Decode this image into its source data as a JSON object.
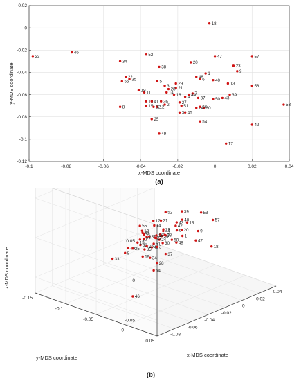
{
  "colors": {
    "point": "#d01414",
    "axis": "#333333",
    "grid": "#e2e2e2",
    "pane": "#ededed"
  },
  "chart_data": [
    {
      "type": "scatter",
      "subplot_label": "(a)",
      "xlabel": "x-MDS coordinate",
      "ylabel": "y-MDS coordinate",
      "xlim": [
        -0.1,
        0.04
      ],
      "ylim": [
        -0.12,
        0.02
      ],
      "xticks": [
        "-0.1",
        "-0.08",
        "-0.06",
        "-0.04",
        "-0.02",
        "0",
        "0.02",
        "0.04"
      ],
      "yticks": [
        "0.02",
        "0",
        "-0.02",
        "-0.04",
        "-0.06",
        "-0.08",
        "-0.1",
        "-0.12"
      ],
      "grid": true,
      "points": [
        {
          "label": "1",
          "x": -0.005,
          "y": -0.041
        },
        {
          "label": "2",
          "x": -0.027,
          "y": -0.069
        },
        {
          "label": "3",
          "x": -0.027,
          "y": -0.052
        },
        {
          "label": "4",
          "x": -0.016,
          "y": -0.062
        },
        {
          "label": "5",
          "x": -0.031,
          "y": -0.048
        },
        {
          "label": "6",
          "x": -0.008,
          "y": -0.046
        },
        {
          "label": "7",
          "x": -0.012,
          "y": -0.059
        },
        {
          "label": "8",
          "x": -0.051,
          "y": -0.071
        },
        {
          "label": "9",
          "x": 0.012,
          "y": -0.039
        },
        {
          "label": "10",
          "x": -0.037,
          "y": -0.066
        },
        {
          "label": "11",
          "x": -0.038,
          "y": -0.058
        },
        {
          "label": "12",
          "x": -0.031,
          "y": -0.071
        },
        {
          "label": "13",
          "x": 0.007,
          "y": -0.05
        },
        {
          "label": "14",
          "x": -0.026,
          "y": -0.058
        },
        {
          "label": "15",
          "x": -0.037,
          "y": -0.07
        },
        {
          "label": "16",
          "x": -0.022,
          "y": -0.06
        },
        {
          "label": "17",
          "x": 0.006,
          "y": -0.104
        },
        {
          "label": "18",
          "x": -0.003,
          "y": 0.004
        },
        {
          "label": "19",
          "x": -0.041,
          "y": -0.056
        },
        {
          "label": "20",
          "x": -0.013,
          "y": -0.031
        },
        {
          "label": "21",
          "x": -0.021,
          "y": -0.054
        },
        {
          "label": "22",
          "x": -0.048,
          "y": -0.044
        },
        {
          "label": "23",
          "x": 0.01,
          "y": -0.034
        },
        {
          "label": "24",
          "x": -0.01,
          "y": -0.072
        },
        {
          "label": "25",
          "x": -0.034,
          "y": -0.082
        },
        {
          "label": "26",
          "x": -0.029,
          "y": -0.066
        },
        {
          "label": "27",
          "x": -0.019,
          "y": -0.067
        },
        {
          "label": "28",
          "x": -0.025,
          "y": -0.055
        },
        {
          "label": "29",
          "x": -0.021,
          "y": -0.05
        },
        {
          "label": "30",
          "x": -0.006,
          "y": -0.072
        },
        {
          "label": "31",
          "x": -0.019,
          "y": -0.076
        },
        {
          "label": "32",
          "x": -0.033,
          "y": -0.071
        },
        {
          "label": "33",
          "x": -0.098,
          "y": -0.026
        },
        {
          "label": "34",
          "x": -0.051,
          "y": -0.03
        },
        {
          "label": "35",
          "x": -0.046,
          "y": -0.046
        },
        {
          "label": "36",
          "x": -0.008,
          "y": -0.071
        },
        {
          "label": "37",
          "x": -0.009,
          "y": -0.063
        },
        {
          "label": "38",
          "x": -0.03,
          "y": -0.035
        },
        {
          "label": "39",
          "x": 0.008,
          "y": -0.06
        },
        {
          "label": "40",
          "x": -0.001,
          "y": -0.047
        },
        {
          "label": "41",
          "x": -0.034,
          "y": -0.066
        },
        {
          "label": "42",
          "x": 0.02,
          "y": -0.087
        },
        {
          "label": "43",
          "x": 0.004,
          "y": -0.063
        },
        {
          "label": "44",
          "x": -0.014,
          "y": -0.06
        },
        {
          "label": "45",
          "x": -0.016,
          "y": -0.076
        },
        {
          "label": "46",
          "x": -0.077,
          "y": -0.022
        },
        {
          "label": "47",
          "x": 0.0,
          "y": -0.026
        },
        {
          "label": "48",
          "x": -0.01,
          "y": -0.044
        },
        {
          "label": "49",
          "x": -0.03,
          "y": -0.095
        },
        {
          "label": "50",
          "x": -0.001,
          "y": -0.064
        },
        {
          "label": "51",
          "x": -0.018,
          "y": -0.07
        },
        {
          "label": "52",
          "x": -0.037,
          "y": -0.024
        },
        {
          "label": "53",
          "x": 0.037,
          "y": -0.069
        },
        {
          "label": "54",
          "x": -0.008,
          "y": -0.084
        },
        {
          "label": "55",
          "x": -0.05,
          "y": -0.048
        },
        {
          "label": "56",
          "x": 0.02,
          "y": -0.052
        },
        {
          "label": "57",
          "x": 0.02,
          "y": -0.026
        }
      ]
    },
    {
      "type": "scatter",
      "subplot_label": "(b)",
      "xlabel": "x-MDS coordinate",
      "ylabel": "y-MDS coordinate",
      "zlabel": "z-MDS coordinate",
      "xticks": [
        "-0.08",
        "-0.06",
        "-0.04",
        "-0.02",
        "0",
        "0.02",
        "0.04"
      ],
      "yticks": [
        "-0.15",
        "-0.1",
        "-0.05",
        "0",
        "0.05"
      ],
      "zticks": [
        "0.05",
        "0",
        "-0.05"
      ],
      "grid": true,
      "points": [
        {
          "label": "1",
          "x": -0.005,
          "y": -0.041,
          "z": -0.011
        },
        {
          "label": "2",
          "x": -0.027,
          "y": -0.069,
          "z": -0.01
        },
        {
          "label": "3",
          "x": -0.027,
          "y": -0.052,
          "z": -0.018
        },
        {
          "label": "4",
          "x": -0.016,
          "y": -0.062,
          "z": -0.01
        },
        {
          "label": "5",
          "x": -0.031,
          "y": -0.048,
          "z": -0.004
        },
        {
          "label": "6",
          "x": -0.008,
          "y": -0.046,
          "z": -0.004
        },
        {
          "label": "7",
          "x": -0.012,
          "y": -0.059,
          "z": -0.012
        },
        {
          "label": "8",
          "x": -0.051,
          "y": -0.071,
          "z": -0.02
        },
        {
          "label": "9",
          "x": 0.012,
          "y": -0.039,
          "z": -0.012
        },
        {
          "label": "10",
          "x": -0.037,
          "y": -0.066,
          "z": -0.008
        },
        {
          "label": "11",
          "x": -0.038,
          "y": -0.058,
          "z": 0.001
        },
        {
          "label": "12",
          "x": -0.031,
          "y": -0.071,
          "z": -0.001
        },
        {
          "label": "13",
          "x": 0.007,
          "y": -0.05,
          "z": -0.002
        },
        {
          "label": "14",
          "x": -0.026,
          "y": -0.058,
          "z": 0.007
        },
        {
          "label": "15",
          "x": -0.037,
          "y": -0.07,
          "z": -0.013
        },
        {
          "label": "16",
          "x": -0.022,
          "y": -0.06,
          "z": -0.008
        },
        {
          "label": "17",
          "x": 0.006,
          "y": -0.104,
          "z": -0.014
        },
        {
          "label": "18",
          "x": -0.003,
          "y": 0.004,
          "z": -0.013
        },
        {
          "label": "19",
          "x": -0.041,
          "y": -0.056,
          "z": -0.025
        },
        {
          "label": "20",
          "x": -0.013,
          "y": -0.031,
          "z": 0.003
        },
        {
          "label": "21",
          "x": -0.021,
          "y": -0.054,
          "z": 0.012
        },
        {
          "label": "22",
          "x": -0.048,
          "y": -0.044,
          "z": 0.004
        },
        {
          "label": "23",
          "x": 0.01,
          "y": -0.034,
          "z": 0.06
        },
        {
          "label": "24",
          "x": -0.01,
          "y": -0.072,
          "z": -0.022
        },
        {
          "label": "25",
          "x": -0.034,
          "y": -0.082,
          "z": -0.025
        },
        {
          "label": "26",
          "x": -0.029,
          "y": -0.066,
          "z": -0.02
        },
        {
          "label": "27",
          "x": -0.019,
          "y": -0.067,
          "z": -0.014
        },
        {
          "label": "28",
          "x": -0.025,
          "y": -0.055,
          "z": -0.04
        },
        {
          "label": "29",
          "x": -0.021,
          "y": -0.05,
          "z": 0.002
        },
        {
          "label": "30",
          "x": -0.006,
          "y": -0.072,
          "z": -0.028
        },
        {
          "label": "31",
          "x": -0.019,
          "y": -0.076,
          "z": -0.015
        },
        {
          "label": "32",
          "x": -0.033,
          "y": -0.071,
          "z": -0.018
        },
        {
          "label": "33",
          "x": -0.098,
          "y": -0.026,
          "z": 0.006
        },
        {
          "label": "34",
          "x": -0.051,
          "y": -0.03,
          "z": -0.015
        },
        {
          "label": "35",
          "x": -0.046,
          "y": -0.046,
          "z": -0.011
        },
        {
          "label": "36",
          "x": -0.008,
          "y": -0.071,
          "z": -0.018
        },
        {
          "label": "37",
          "x": -0.009,
          "y": -0.063,
          "z": -0.038
        },
        {
          "label": "38",
          "x": -0.03,
          "y": -0.035,
          "z": 0.003
        },
        {
          "label": "39",
          "x": 0.008,
          "y": -0.06,
          "z": 0.009
        },
        {
          "label": "40",
          "x": -0.001,
          "y": -0.047,
          "z": 0.006
        },
        {
          "label": "41",
          "x": -0.034,
          "y": -0.066,
          "z": -0.001
        },
        {
          "label": "42",
          "x": 0.02,
          "y": -0.087,
          "z": -0.022
        },
        {
          "label": "43",
          "x": 0.004,
          "y": -0.063,
          "z": -0.004
        },
        {
          "label": "44",
          "x": -0.014,
          "y": -0.06,
          "z": -0.006
        },
        {
          "label": "45",
          "x": -0.016,
          "y": -0.076,
          "z": -0.03
        },
        {
          "label": "46",
          "x": -0.077,
          "y": -0.022,
          "z": -0.05
        },
        {
          "label": "47",
          "x": 0.0,
          "y": -0.026,
          "z": -0.015
        },
        {
          "label": "48",
          "x": -0.01,
          "y": -0.044,
          "z": -0.018
        },
        {
          "label": "49",
          "x": -0.03,
          "y": -0.095,
          "z": -0.03
        },
        {
          "label": "50",
          "x": -0.001,
          "y": -0.064,
          "z": -0.024
        },
        {
          "label": "51",
          "x": -0.018,
          "y": -0.07,
          "z": -0.023
        },
        {
          "label": "52",
          "x": -0.037,
          "y": -0.024,
          "z": 0.038
        },
        {
          "label": "53",
          "x": 0.037,
          "y": -0.069,
          "z": -0.008
        },
        {
          "label": "54",
          "x": -0.008,
          "y": -0.084,
          "z": -0.065
        },
        {
          "label": "55",
          "x": -0.05,
          "y": -0.048,
          "z": 0.02
        },
        {
          "label": "56",
          "x": 0.02,
          "y": -0.052,
          "z": 0.04
        },
        {
          "label": "57",
          "x": 0.02,
          "y": -0.026,
          "z": 0.002
        }
      ]
    }
  ]
}
